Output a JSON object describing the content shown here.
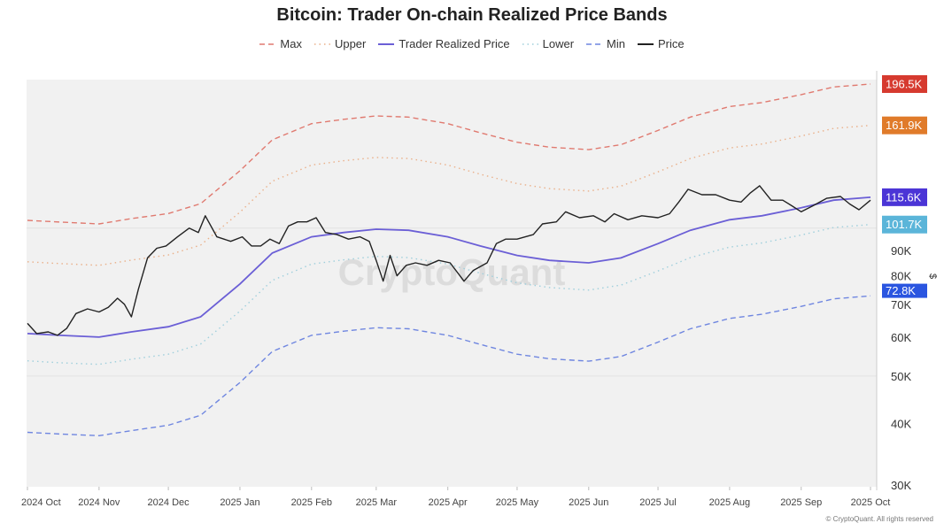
{
  "chart_data": {
    "type": "line",
    "title": "Bitcoin: Trader On-chain Realized Price Bands",
    "watermark": "CryptoQuant",
    "footer": "© CryptoQuant. All rights reserved",
    "ylabel": "$",
    "yscale": "log",
    "ylim": [
      30000,
      210000
    ],
    "xlim": [
      "2024-09-30",
      "2025-10-04"
    ],
    "x_ticks": [
      {
        "date": "2024-10-01",
        "label": "2024 Oct"
      },
      {
        "date": "2024-11-01",
        "label": "2024 Nov"
      },
      {
        "date": "2024-12-01",
        "label": "2024 Dec"
      },
      {
        "date": "2025-01-01",
        "label": "2025 Jan"
      },
      {
        "date": "2025-02-01",
        "label": "2025 Feb"
      },
      {
        "date": "2025-03-01",
        "label": "2025 Mar"
      },
      {
        "date": "2025-04-01",
        "label": "2025 Apr"
      },
      {
        "date": "2025-05-01",
        "label": "2025 May"
      },
      {
        "date": "2025-06-01",
        "label": "2025 Jun"
      },
      {
        "date": "2025-07-01",
        "label": "2025 Jul"
      },
      {
        "date": "2025-08-01",
        "label": "2025 Aug"
      },
      {
        "date": "2025-09-01",
        "label": "2025 Sep"
      },
      {
        "date": "2025-10-01",
        "label": "2025 Oct"
      }
    ],
    "y_ticks": [
      {
        "value": 30000,
        "label": "30K"
      },
      {
        "value": 40000,
        "label": "40K"
      },
      {
        "value": 50000,
        "label": "50K"
      },
      {
        "value": 60000,
        "label": "60K"
      },
      {
        "value": 70000,
        "label": "70K"
      },
      {
        "value": 80000,
        "label": "80K"
      },
      {
        "value": 90000,
        "label": "90K"
      }
    ],
    "grid": false,
    "legend": "top",
    "band_dates": [
      "2024-10-01",
      "2024-10-15",
      "2024-11-01",
      "2024-11-15",
      "2024-12-01",
      "2024-12-15",
      "2025-01-01",
      "2025-01-15",
      "2025-02-01",
      "2025-02-15",
      "2025-03-01",
      "2025-03-15",
      "2025-04-01",
      "2025-04-15",
      "2025-05-01",
      "2025-05-15",
      "2025-06-01",
      "2025-06-15",
      "2025-07-01",
      "2025-07-15",
      "2025-08-01",
      "2025-08-15",
      "2025-09-01",
      "2025-09-15",
      "2025-10-01"
    ],
    "series": [
      {
        "name": "Max",
        "style": "dashed",
        "color": "#e07a70",
        "last_label": "196.5K",
        "label_color": "#d63a2f",
        "values": [
          103.7,
          102.9,
          102,
          104.6,
          107.1,
          112.2,
          130.9,
          151.3,
          163.2,
          166.6,
          169.2,
          168.3,
          163.2,
          156.4,
          149.6,
          146.2,
          144.5,
          147.9,
          158.1,
          168.3,
          176.8,
          180.2,
          187,
          193.8,
          196.5
        ]
      },
      {
        "name": "Upper",
        "style": "dotted",
        "color": "#eab08a",
        "last_label": "161.9K",
        "label_color": "#e07b2a",
        "values": [
          85.4,
          84.7,
          84,
          86.1,
          88.2,
          92.4,
          107.8,
          124.6,
          134.4,
          137.2,
          139.3,
          138.6,
          134.4,
          128.8,
          123.2,
          120.4,
          119,
          121.8,
          130.2,
          138.6,
          145.6,
          148.4,
          154,
          159.6,
          161.9
        ]
      },
      {
        "name": "Trader Realized Price",
        "style": "solid",
        "color": "#6b5fd6",
        "last_label": "115.6K",
        "label_color": "#4b35d6",
        "values": [
          61,
          60.5,
          60,
          61.5,
          63,
          66,
          77,
          89,
          96,
          98,
          99.5,
          99,
          96,
          92,
          88,
          86,
          85,
          87,
          93,
          99,
          104,
          106,
          110,
          114,
          115.6
        ]
      },
      {
        "name": "Lower",
        "style": "dotted",
        "color": "#9fcfdc",
        "last_label": "101.7K",
        "label_color": "#5bb5d9",
        "values": [
          53.7,
          53.2,
          52.8,
          54.1,
          55.4,
          58.1,
          67.8,
          78.3,
          84.5,
          86.2,
          87.6,
          87.1,
          84.5,
          81,
          77.4,
          75.7,
          74.8,
          76.6,
          81.8,
          87.1,
          91.5,
          93.3,
          96.8,
          100.3,
          101.7
        ]
      },
      {
        "name": "Min",
        "style": "dashed",
        "color": "#6f86e0",
        "last_label": "72.8K",
        "label_color": "#2a55e0",
        "values": [
          38.4,
          38.1,
          37.8,
          38.7,
          39.7,
          41.6,
          48.5,
          56.1,
          60.5,
          61.7,
          62.7,
          62.4,
          60.5,
          58,
          55.4,
          54.2,
          53.6,
          54.8,
          58.6,
          62.4,
          65.5,
          66.8,
          69.3,
          71.8,
          72.8
        ]
      }
    ],
    "value_unit": "K USD",
    "price": {
      "name": "Price",
      "style": "solid",
      "color": "#222222",
      "points": [
        [
          "2024-10-01",
          64
        ],
        [
          "2024-10-05",
          61
        ],
        [
          "2024-10-10",
          61.5
        ],
        [
          "2024-10-14",
          60.5
        ],
        [
          "2024-10-18",
          62.5
        ],
        [
          "2024-10-22",
          67
        ],
        [
          "2024-10-27",
          68.5
        ],
        [
          "2024-11-01",
          67.5
        ],
        [
          "2024-11-05",
          69
        ],
        [
          "2024-11-09",
          72
        ],
        [
          "2024-11-12",
          70
        ],
        [
          "2024-11-15",
          66
        ],
        [
          "2024-11-18",
          75
        ],
        [
          "2024-11-22",
          87
        ],
        [
          "2024-11-26",
          91
        ],
        [
          "2024-11-30",
          92
        ],
        [
          "2024-12-05",
          96
        ],
        [
          "2024-12-10",
          100
        ],
        [
          "2024-12-14",
          98
        ],
        [
          "2024-12-17",
          106
        ],
        [
          "2024-12-22",
          96
        ],
        [
          "2024-12-28",
          94
        ],
        [
          "2025-01-02",
          96
        ],
        [
          "2025-01-06",
          92
        ],
        [
          "2025-01-10",
          92
        ],
        [
          "2025-01-14",
          95
        ],
        [
          "2025-01-18",
          93
        ],
        [
          "2025-01-22",
          101
        ],
        [
          "2025-01-26",
          103
        ],
        [
          "2025-01-30",
          103
        ],
        [
          "2025-02-03",
          105
        ],
        [
          "2025-02-07",
          98
        ],
        [
          "2025-02-12",
          97
        ],
        [
          "2025-02-17",
          95
        ],
        [
          "2025-02-22",
          96
        ],
        [
          "2025-02-26",
          94
        ],
        [
          "2025-03-01",
          86
        ],
        [
          "2025-03-04",
          78
        ],
        [
          "2025-03-07",
          88
        ],
        [
          "2025-03-10",
          80
        ],
        [
          "2025-03-14",
          84
        ],
        [
          "2025-03-18",
          85
        ],
        [
          "2025-03-23",
          84
        ],
        [
          "2025-03-28",
          86
        ],
        [
          "2025-04-02",
          85
        ],
        [
          "2025-04-08",
          78
        ],
        [
          "2025-04-12",
          82
        ],
        [
          "2025-04-18",
          85
        ],
        [
          "2025-04-22",
          93
        ],
        [
          "2025-04-26",
          95
        ],
        [
          "2025-05-01",
          95
        ],
        [
          "2025-05-08",
          97
        ],
        [
          "2025-05-12",
          102
        ],
        [
          "2025-05-18",
          103
        ],
        [
          "2025-05-22",
          108
        ],
        [
          "2025-05-28",
          105
        ],
        [
          "2025-06-03",
          106
        ],
        [
          "2025-06-08",
          103
        ],
        [
          "2025-06-12",
          107
        ],
        [
          "2025-06-18",
          104
        ],
        [
          "2025-06-24",
          106
        ],
        [
          "2025-07-01",
          105
        ],
        [
          "2025-07-06",
          107
        ],
        [
          "2025-07-10",
          113
        ],
        [
          "2025-07-14",
          120
        ],
        [
          "2025-07-20",
          117
        ],
        [
          "2025-07-26",
          117
        ],
        [
          "2025-08-01",
          114
        ],
        [
          "2025-08-06",
          113
        ],
        [
          "2025-08-10",
          118
        ],
        [
          "2025-08-14",
          122
        ],
        [
          "2025-08-19",
          114
        ],
        [
          "2025-08-24",
          114
        ],
        [
          "2025-08-28",
          111
        ],
        [
          "2025-09-01",
          108
        ],
        [
          "2025-09-06",
          111
        ],
        [
          "2025-09-12",
          115
        ],
        [
          "2025-09-18",
          116
        ],
        [
          "2025-09-22",
          112
        ],
        [
          "2025-09-26",
          109
        ],
        [
          "2025-10-01",
          114
        ]
      ]
    }
  }
}
